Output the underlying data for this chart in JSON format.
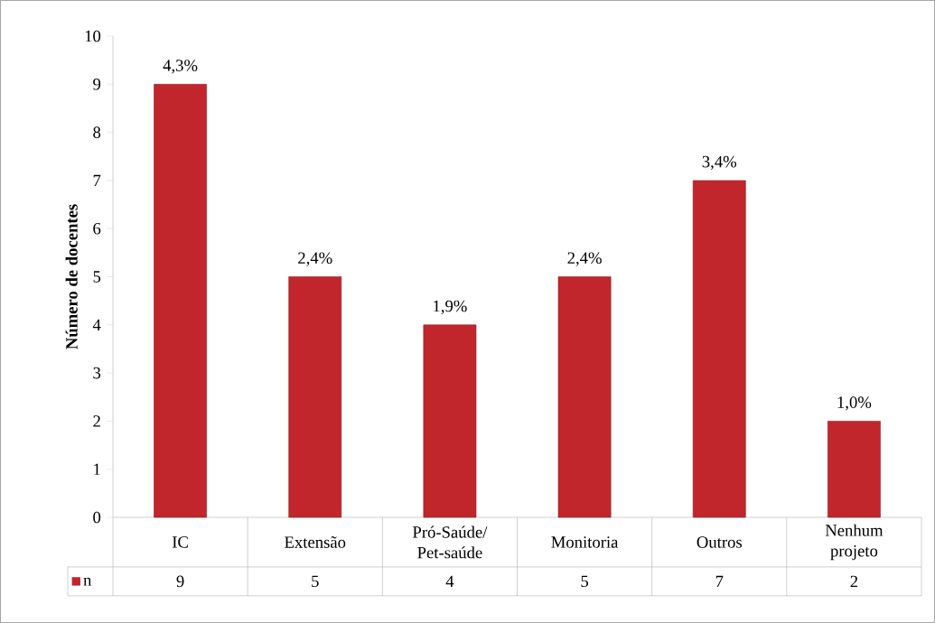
{
  "chart_data": {
    "type": "bar",
    "ylabel": "Número de docentes",
    "categories": [
      "IC",
      "Extensão",
      "Pró-Saúde/ Pet-saúde",
      "Monitoria",
      "Outros",
      "Nenhum projeto"
    ],
    "series": [
      {
        "name": "n",
        "color": "#c0262b",
        "values": [
          9,
          5,
          4,
          5,
          7,
          2
        ],
        "value_labels": [
          "9",
          "5",
          "4",
          "5",
          "7",
          "2"
        ]
      }
    ],
    "annotations": [
      {
        "text": "4,3%",
        "x": "IC",
        "y": 9
      },
      {
        "text": "2,4%",
        "x": "Extensão",
        "y": 5
      },
      {
        "text": "1,9%",
        "x": "Pró-Saúde/ Pet-saúde",
        "y": 4
      },
      {
        "text": "2,4%",
        "x": "Monitoria",
        "y": 5
      },
      {
        "text": "3,4%",
        "x": "Outros",
        "y": 7
      },
      {
        "text": "1,0%",
        "x": "Nenhum projeto",
        "y": 2
      }
    ],
    "ylim": [
      0,
      10
    ],
    "yticks": [
      0,
      1,
      2,
      3,
      4,
      5,
      6,
      7,
      8,
      9,
      10
    ],
    "legend": "bottom",
    "grid": false
  }
}
